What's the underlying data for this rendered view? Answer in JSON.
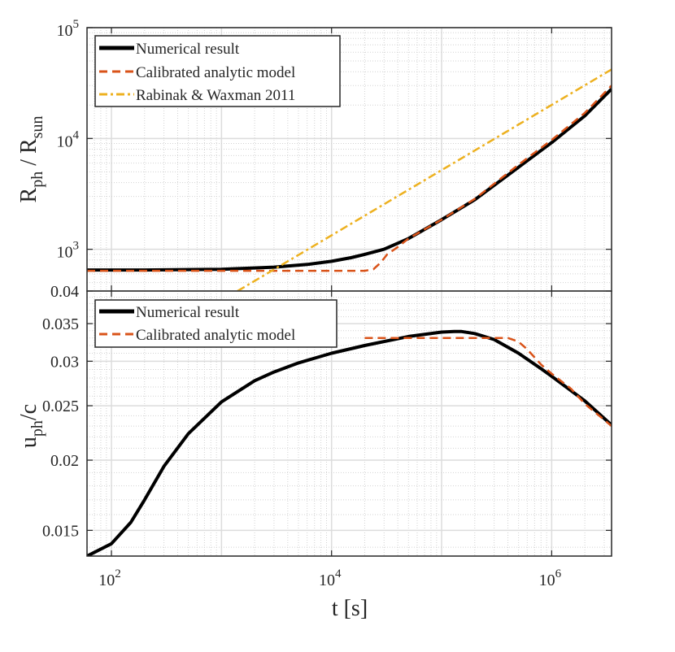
{
  "chart_data": [
    {
      "type": "line",
      "panel": "top",
      "ylabel": "R_ph / R_sun",
      "ylabel_parts": {
        "base1": "R",
        "sub1": "ph",
        "mid": " / R",
        "sub2": "sun"
      },
      "xscale": "log",
      "yscale": "log",
      "xlim": [
        60,
        3500000
      ],
      "ylim": [
        420,
        100000
      ],
      "grid": true,
      "legend_position": "top-left",
      "yticks": [
        {
          "value": 1000,
          "base": "10",
          "exp": "3"
        },
        {
          "value": 10000,
          "base": "10",
          "exp": "4"
        },
        {
          "value": 100000,
          "base": "10",
          "exp": "5"
        }
      ],
      "series": [
        {
          "name": "Numerical result",
          "color": "#000000",
          "style": "solid",
          "x": [
            60,
            200,
            1000,
            3000,
            6000,
            10000,
            15000,
            20000,
            30000,
            50000,
            100000,
            200000,
            500000,
            1000000,
            2000000,
            3500000
          ],
          "y": [
            650,
            650,
            660,
            690,
            730,
            780,
            840,
            900,
            1000,
            1250,
            1850,
            2800,
            5500,
            9200,
            16000,
            28000
          ]
        },
        {
          "name": "Calibrated analytic model",
          "color": "#D95319",
          "style": "dashed",
          "x": [
            60,
            10000,
            20000,
            24000,
            28000,
            32000,
            40000,
            50000,
            100000,
            200000,
            500000,
            1000000,
            2000000,
            3500000
          ],
          "y": [
            640,
            640,
            640,
            660,
            760,
            900,
            1050,
            1250,
            1850,
            2850,
            5800,
            9700,
            17000,
            30000
          ]
        },
        {
          "name": "Rabinak & Waxman 2011",
          "color": "#EDB120",
          "style": "dashdot",
          "x": [
            1400,
            3500000
          ],
          "y": [
            420,
            42000
          ]
        }
      ]
    },
    {
      "type": "line",
      "panel": "bottom",
      "xlabel": "t [s]",
      "ylabel": "u_ph/c",
      "ylabel_parts": {
        "base1": "u",
        "sub1": "ph",
        "rest": "/c"
      },
      "xscale": "log",
      "yscale": "log",
      "xlim": [
        60,
        3500000
      ],
      "ylim": [
        0.0135,
        0.04
      ],
      "grid": true,
      "legend_position": "top-left",
      "yticks": [
        {
          "value": 0.015,
          "label": "0.015"
        },
        {
          "value": 0.02,
          "label": "0.02"
        },
        {
          "value": 0.025,
          "label": "0.025"
        },
        {
          "value": 0.03,
          "label": "0.03"
        },
        {
          "value": 0.035,
          "label": "0.035"
        },
        {
          "value": 0.04,
          "label": "0.04"
        }
      ],
      "xticks": [
        {
          "value": 100,
          "base": "10",
          "exp": "2"
        },
        {
          "value": 10000,
          "base": "10",
          "exp": "4"
        },
        {
          "value": 1000000,
          "base": "10",
          "exp": "6"
        }
      ],
      "series": [
        {
          "name": "Numerical result",
          "color": "#000000",
          "style": "solid",
          "x": [
            60,
            100,
            150,
            200,
            300,
            500,
            1000,
            2000,
            3000,
            5000,
            10000,
            20000,
            50000,
            100000,
            130000,
            150000,
            200000,
            300000,
            500000,
            800000,
            1000000,
            2000000,
            3500000
          ],
          "y": [
            0.0135,
            0.0142,
            0.0155,
            0.017,
            0.0195,
            0.0223,
            0.0254,
            0.0277,
            0.0287,
            0.0298,
            0.031,
            0.032,
            0.0332,
            0.0338,
            0.0339,
            0.0339,
            0.0336,
            0.0328,
            0.031,
            0.0291,
            0.0282,
            0.0255,
            0.0231
          ]
        },
        {
          "name": "Calibrated analytic model",
          "color": "#D95319",
          "style": "dashed",
          "x": [
            20000,
            100000,
            200000,
            300000,
            400000,
            500000,
            600000,
            800000,
            1000000,
            1500000,
            2000000,
            3000000,
            3500000
          ],
          "y": [
            0.033,
            0.033,
            0.033,
            0.033,
            0.033,
            0.0325,
            0.0315,
            0.0296,
            0.0285,
            0.0268,
            0.0252,
            0.0236,
            0.023
          ]
        }
      ]
    }
  ]
}
